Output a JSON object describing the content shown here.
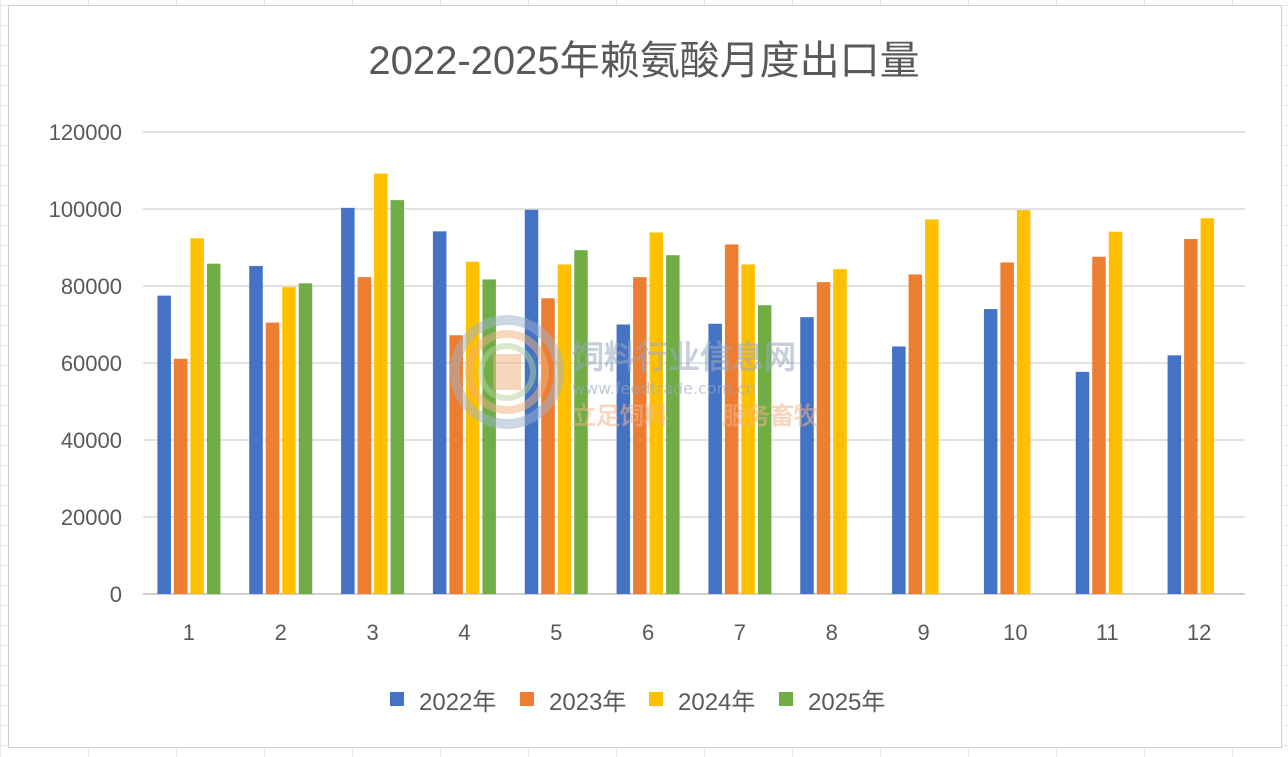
{
  "chart_data": {
    "type": "bar",
    "title": "2022-2025年赖氨酸月度出口量",
    "categories": [
      "1",
      "2",
      "3",
      "4",
      "5",
      "6",
      "7",
      "8",
      "9",
      "10",
      "11",
      "12"
    ],
    "ylim": [
      0,
      120000
    ],
    "yticks": [
      "0",
      "20000",
      "40000",
      "60000",
      "80000",
      "100000",
      "120000"
    ],
    "grid": true,
    "legend_position": "bottom",
    "series": [
      {
        "name": "2022年",
        "color": "#4472c4",
        "values": [
          77500,
          85200,
          100300,
          94200,
          99800,
          70000,
          70200,
          71900,
          64300,
          74000,
          57700,
          62000
        ]
      },
      {
        "name": "2023年",
        "color": "#ed7d31",
        "values": [
          61100,
          70500,
          82300,
          67200,
          76800,
          82300,
          90800,
          81000,
          83000,
          86100,
          87600,
          92200
        ]
      },
      {
        "name": "2024年",
        "color": "#ffc000",
        "values": [
          92400,
          79700,
          109200,
          86300,
          85600,
          93900,
          85600,
          84400,
          97300,
          99700,
          94100,
          97600
        ]
      },
      {
        "name": "2025年",
        "color": "#70ad47",
        "values": [
          85800,
          80700,
          102300,
          81700,
          89300,
          88000,
          75000,
          null,
          null,
          null,
          null,
          null
        ]
      }
    ]
  },
  "watermark": {
    "site_name": "饲料行业信息网",
    "url": "www.feedtrade.com.cn",
    "slogan_left": "立足饲料",
    "slogan_right": "服务畜牧"
  }
}
